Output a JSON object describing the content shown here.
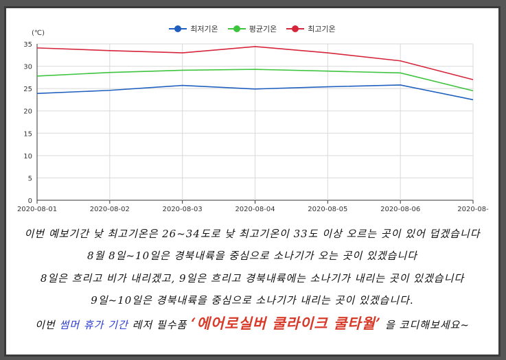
{
  "chart_data": {
    "type": "line",
    "ylabel": "(℃)",
    "ylim": [
      0,
      35
    ],
    "yticks": [
      0,
      5,
      10,
      15,
      20,
      25,
      30,
      35
    ],
    "categories": [
      "2020-08-01",
      "2020-08-02",
      "2020-08-03",
      "2020-08-04",
      "2020-08-05",
      "2020-08-06",
      "2020-08-"
    ],
    "grid": true,
    "legend_position": "top-center",
    "series": [
      {
        "name": "최저기온",
        "color": "#1f5fbf",
        "values": [
          23.9,
          24.6,
          25.7,
          24.9,
          25.4,
          25.8,
          22.5
        ]
      },
      {
        "name": "평균기온",
        "color": "#3cc43c",
        "values": [
          27.8,
          28.6,
          29.1,
          29.3,
          28.9,
          28.5,
          24.5
        ]
      },
      {
        "name": "최고기온",
        "color": "#d6243a",
        "values": [
          34.1,
          33.5,
          33.0,
          34.4,
          33.0,
          31.2,
          27.0
        ]
      }
    ]
  },
  "caption": {
    "line1": "이번 예보기간 낮 최고기온은 26~34도로 낮 최고기온이 33도 이상 오르는 곳이 있어 덥겠습니다",
    "line2": "8월 8일~10일은 경북내륙을 중심으로 소나기가 오는 곳이 있겠습니다",
    "line3": "8일은 흐리고 비가 내리겠고, 9일은 흐리고 경북내륙에는 소나기가 내리는 곳이 있겠습니다",
    "line4": "9일~10일은 경북내륙을 중심으로 소나기가 내리는 곳이 있겠습니다.",
    "line5_a": "이번 ",
    "line5_highlight": "썸머 휴가 기간",
    "line5_b": " 레저 필수품 ",
    "line5_product": "‘에어로실버 쿨라이크 쿨타월’",
    "line5_c": " 을 코디해보세요~"
  }
}
